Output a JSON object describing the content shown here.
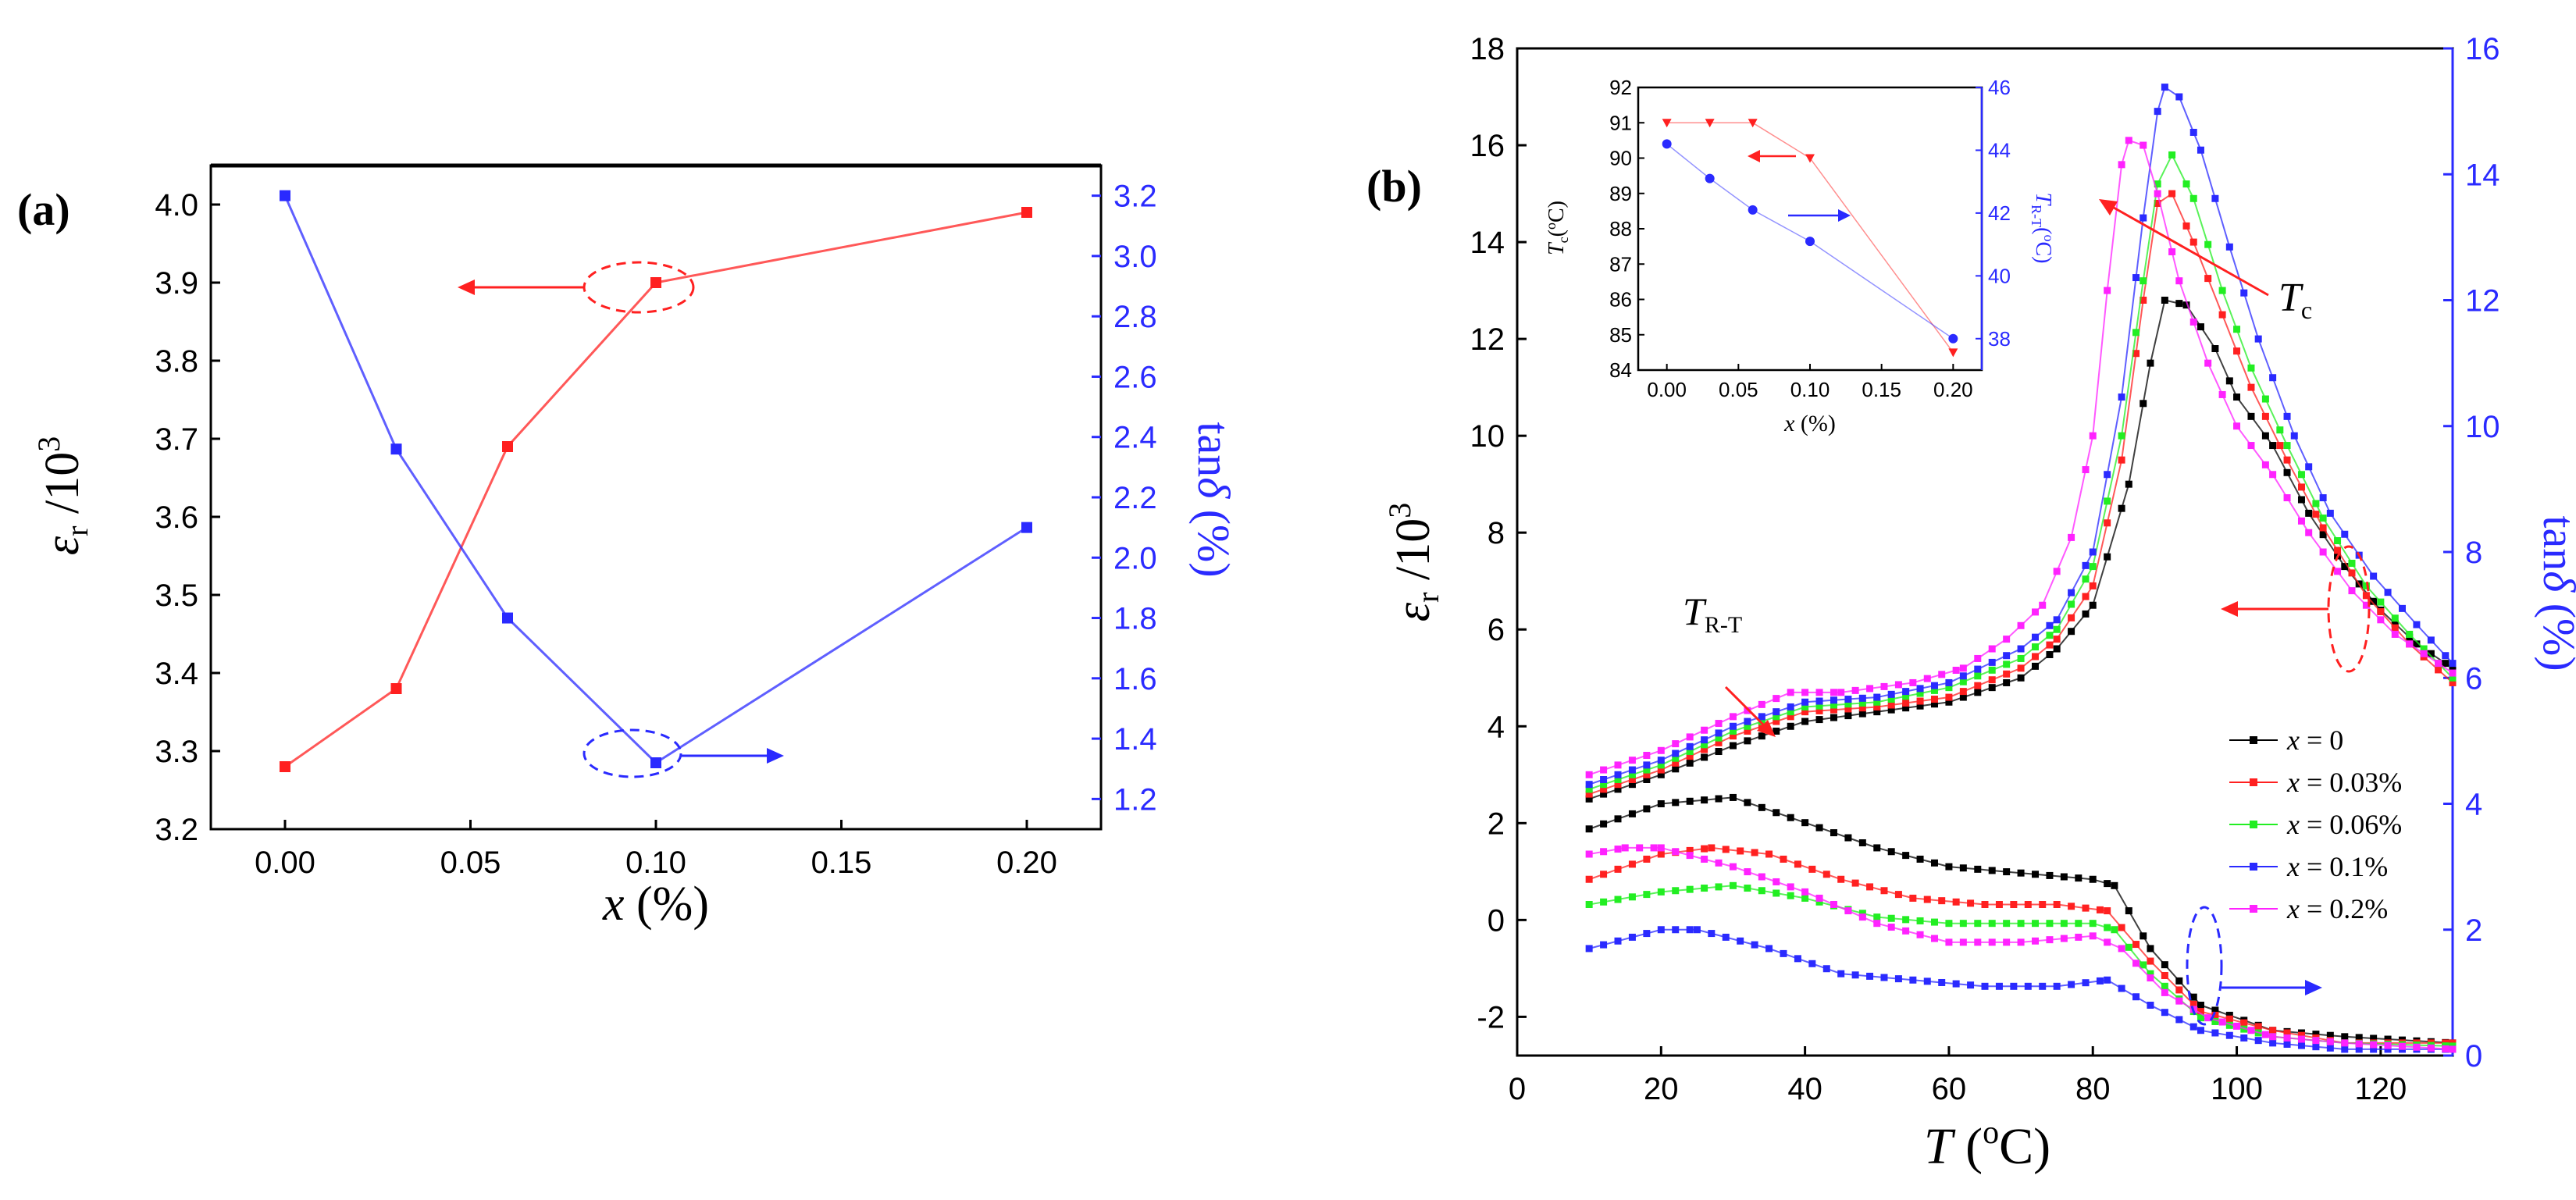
{
  "panels": {
    "a": {
      "label": "(a)",
      "y_left_label": {
        "sym": "ε",
        "sub": "r",
        "rest": " /10",
        "sup": "3"
      },
      "y_right_label": {
        "main": "tan",
        "sym": "δ",
        "rest": " (%)"
      },
      "x_label": {
        "sym": "x",
        "rest": " (%)"
      },
      "annotation_arrow_left": "left arrow indicating the red curve uses the left axis",
      "annotation_arrow_right": "right arrow indicating the blue curve uses the right axis"
    },
    "b": {
      "label": "(b)",
      "y_left_label": {
        "sym": "ε",
        "sub": "r",
        "rest": " /10",
        "sup": "3"
      },
      "y_right_label": {
        "main": "tan",
        "sym": "δ",
        "rest": " (%)"
      },
      "x_label": {
        "sym": "T",
        "rest": " (",
        "sup": "o",
        "tail": "C)"
      },
      "annotation_tc": {
        "sym": "T",
        "sub": "c"
      },
      "annotation_trt": {
        "sym": "T",
        "sub": "R-T"
      },
      "inset": {
        "y_left_label": {
          "sym": "T",
          "sub": "c",
          "rest": "(",
          "sup": "o",
          "tail": "C)"
        },
        "y_right_label": {
          "sym": "T",
          "sub": "R-T",
          "rest": "(",
          "sup": "o",
          "tail": "C)"
        },
        "x_label": {
          "sym": "x",
          "rest": " (%)"
        }
      }
    }
  },
  "colors": {
    "red": "#ff2020",
    "blue": "#2a2aff",
    "black": "#000000",
    "green": "#22ee22",
    "magenta": "#ff22ff",
    "axis": "#000000",
    "right_axis_b": "#2a2aff"
  },
  "chart_data": [
    {
      "type": "line",
      "panel": "a",
      "x": [
        0.0,
        0.03,
        0.06,
        0.1,
        0.2
      ],
      "xlim": [
        -0.02,
        0.22
      ],
      "xticks": [
        "0.00",
        "0.05",
        "0.10",
        "0.15",
        "0.20"
      ],
      "xtick_values": [
        0.0,
        0.05,
        0.1,
        0.15,
        0.2
      ],
      "ylim_left": [
        3.2,
        4.05
      ],
      "yticks_left": [
        "3.2",
        "3.3",
        "3.4",
        "3.5",
        "3.6",
        "3.7",
        "3.8",
        "3.9",
        "4.0"
      ],
      "ytick_values_left": [
        3.2,
        3.3,
        3.4,
        3.5,
        3.6,
        3.7,
        3.8,
        3.9,
        4.0
      ],
      "ylim_right": [
        1.1,
        3.3
      ],
      "yticks_right": [
        "1.2",
        "1.4",
        "1.6",
        "1.8",
        "2.0",
        "2.2",
        "2.4",
        "2.6",
        "2.8",
        "3.0",
        "3.2"
      ],
      "ytick_values_right": [
        1.2,
        1.4,
        1.6,
        1.8,
        2.0,
        2.2,
        2.4,
        2.6,
        2.8,
        3.0,
        3.2
      ],
      "series": [
        {
          "axis": "left",
          "color": "red",
          "values": [
            3.28,
            3.38,
            3.69,
            3.9,
            3.99
          ]
        },
        {
          "axis": "right",
          "color": "blue",
          "values": [
            3.2,
            2.36,
            1.8,
            1.32,
            2.1
          ]
        }
      ]
    },
    {
      "type": "line",
      "panel": "b",
      "xlim": [
        0,
        130
      ],
      "xticks": [
        "0",
        "20",
        "40",
        "60",
        "80",
        "100",
        "120"
      ],
      "xtick_values": [
        0,
        20,
        40,
        60,
        80,
        100,
        120
      ],
      "ylim_left": [
        -2.8,
        18
      ],
      "yticks_left": [
        "-2",
        "0",
        "2",
        "4",
        "6",
        "8",
        "10",
        "12",
        "14",
        "16",
        "18"
      ],
      "ytick_values_left": [
        -2,
        0,
        2,
        4,
        6,
        8,
        10,
        12,
        14,
        16,
        18
      ],
      "ylim_right": [
        0,
        16
      ],
      "yticks_right": [
        "0",
        "2",
        "4",
        "6",
        "8",
        "10",
        "12",
        "14",
        "16"
      ],
      "ytick_values_right": [
        0,
        2,
        4,
        6,
        8,
        10,
        12,
        14,
        16
      ],
      "legend": {
        "placement": "lower-right (inside plot)",
        "entries": [
          "x = 0",
          "x = 0.03%",
          "x = 0.06%",
          "x = 0.1%",
          "x = 0.2%"
        ]
      },
      "permittivity_series": [
        {
          "name": "x = 0",
          "color": "black",
          "points": [
            [
              10,
              2.5
            ],
            [
              20,
              3.0
            ],
            [
              30,
              3.6
            ],
            [
              40,
              4.1
            ],
            [
              50,
              4.3
            ],
            [
              60,
              4.5
            ],
            [
              70,
              5.0
            ],
            [
              75,
              5.6
            ],
            [
              80,
              6.5
            ],
            [
              85,
              9.0
            ],
            [
              88,
              11.5
            ],
            [
              90,
              12.8
            ],
            [
              93,
              12.7
            ],
            [
              97,
              11.8
            ],
            [
              100,
              10.8
            ],
            [
              105,
              9.8
            ],
            [
              110,
              8.4
            ],
            [
              115,
              7.3
            ],
            [
              120,
              6.4
            ],
            [
              125,
              5.7
            ],
            [
              130,
              5.2
            ]
          ]
        },
        {
          "name": "x = 0.03%",
          "color": "red",
          "points": [
            [
              10,
              2.6
            ],
            [
              20,
              3.1
            ],
            [
              30,
              3.8
            ],
            [
              40,
              4.3
            ],
            [
              50,
              4.4
            ],
            [
              60,
              4.6
            ],
            [
              70,
              5.2
            ],
            [
              75,
              5.8
            ],
            [
              80,
              6.9
            ],
            [
              84,
              9.5
            ],
            [
              87,
              12.8
            ],
            [
              89,
              14.8
            ],
            [
              91,
              15.0
            ],
            [
              94,
              14.0
            ],
            [
              98,
              12.5
            ],
            [
              102,
              11.0
            ],
            [
              107,
              9.5
            ],
            [
              112,
              8.1
            ],
            [
              118,
              6.7
            ],
            [
              124,
              5.7
            ],
            [
              130,
              4.9
            ]
          ]
        },
        {
          "name": "x = 0.06%",
          "color": "green",
          "points": [
            [
              10,
              2.7
            ],
            [
              20,
              3.2
            ],
            [
              30,
              3.9
            ],
            [
              40,
              4.4
            ],
            [
              50,
              4.5
            ],
            [
              60,
              4.8
            ],
            [
              70,
              5.4
            ],
            [
              75,
              6.0
            ],
            [
              80,
              7.3
            ],
            [
              84,
              10.0
            ],
            [
              87,
              13.2
            ],
            [
              89,
              15.2
            ],
            [
              91,
              15.8
            ],
            [
              94,
              14.9
            ],
            [
              98,
              13.0
            ],
            [
              102,
              11.4
            ],
            [
              107,
              9.8
            ],
            [
              112,
              8.3
            ],
            [
              118,
              6.9
            ],
            [
              124,
              5.9
            ],
            [
              130,
              5.0
            ]
          ]
        },
        {
          "name": "x = 0.1%",
          "color": "blue",
          "points": [
            [
              10,
              2.8
            ],
            [
              20,
              3.3
            ],
            [
              30,
              4.0
            ],
            [
              40,
              4.5
            ],
            [
              50,
              4.6
            ],
            [
              60,
              4.9
            ],
            [
              70,
              5.6
            ],
            [
              75,
              6.2
            ],
            [
              80,
              7.6
            ],
            [
              84,
              10.8
            ],
            [
              87,
              14.5
            ],
            [
              89,
              16.7
            ],
            [
              90,
              17.2
            ],
            [
              92,
              17.0
            ],
            [
              95,
              15.9
            ],
            [
              99,
              13.9
            ],
            [
              103,
              12.0
            ],
            [
              108,
              10.0
            ],
            [
              113,
              8.4
            ],
            [
              119,
              7.1
            ],
            [
              125,
              6.1
            ],
            [
              130,
              5.3
            ]
          ]
        },
        {
          "name": "x = 0.2%",
          "color": "magenta",
          "points": [
            [
              10,
              3.0
            ],
            [
              20,
              3.5
            ],
            [
              30,
              4.2
            ],
            [
              38,
              4.7
            ],
            [
              45,
              4.7
            ],
            [
              55,
              4.9
            ],
            [
              62,
              5.2
            ],
            [
              68,
              5.8
            ],
            [
              73,
              6.5
            ],
            [
              77,
              7.9
            ],
            [
              80,
              10.0
            ],
            [
              82,
              13.0
            ],
            [
              84,
              15.6
            ],
            [
              85,
              16.1
            ],
            [
              87,
              16.0
            ],
            [
              89,
              15.0
            ],
            [
              92,
              13.2
            ],
            [
              96,
              11.5
            ],
            [
              100,
              10.2
            ],
            [
              105,
              9.2
            ],
            [
              110,
              8.0
            ],
            [
              116,
              6.8
            ],
            [
              122,
              5.9
            ],
            [
              130,
              5.1
            ]
          ]
        }
      ],
      "loss_series": [
        {
          "name": "x = 0",
          "color": "black",
          "points": [
            [
              10,
              3.6
            ],
            [
              20,
              4.0
            ],
            [
              30,
              4.1
            ],
            [
              40,
              3.7
            ],
            [
              50,
              3.3
            ],
            [
              60,
              3.0
            ],
            [
              70,
              2.9
            ],
            [
              80,
              2.8
            ],
            [
              83,
              2.7
            ],
            [
              88,
              1.7
            ],
            [
              95,
              0.8
            ],
            [
              105,
              0.4
            ],
            [
              115,
              0.3
            ],
            [
              130,
              0.2
            ]
          ]
        },
        {
          "name": "x = 0.03%",
          "color": "red",
          "points": [
            [
              10,
              2.8
            ],
            [
              20,
              3.2
            ],
            [
              27,
              3.3
            ],
            [
              35,
              3.2
            ],
            [
              45,
              2.8
            ],
            [
              55,
              2.5
            ],
            [
              65,
              2.4
            ],
            [
              75,
              2.4
            ],
            [
              82,
              2.3
            ],
            [
              88,
              1.5
            ],
            [
              95,
              0.7
            ],
            [
              105,
              0.4
            ],
            [
              115,
              0.2
            ],
            [
              130,
              0.2
            ]
          ]
        },
        {
          "name": "x = 0.06%",
          "color": "green",
          "points": [
            [
              10,
              2.4
            ],
            [
              20,
              2.6
            ],
            [
              30,
              2.7
            ],
            [
              40,
              2.5
            ],
            [
              50,
              2.2
            ],
            [
              60,
              2.1
            ],
            [
              70,
              2.1
            ],
            [
              80,
              2.1
            ],
            [
              83,
              2.0
            ],
            [
              88,
              1.3
            ],
            [
              95,
              0.6
            ],
            [
              105,
              0.3
            ],
            [
              115,
              0.2
            ],
            [
              130,
              0.15
            ]
          ]
        },
        {
          "name": "x = 0.1%",
          "color": "blue",
          "points": [
            [
              10,
              1.7
            ],
            [
              20,
              2.0
            ],
            [
              25,
              2.0
            ],
            [
              35,
              1.7
            ],
            [
              45,
              1.3
            ],
            [
              55,
              1.2
            ],
            [
              65,
              1.1
            ],
            [
              75,
              1.1
            ],
            [
              82,
              1.2
            ],
            [
              88,
              0.8
            ],
            [
              95,
              0.4
            ],
            [
              105,
              0.2
            ],
            [
              115,
              0.1
            ],
            [
              130,
              0.1
            ]
          ]
        },
        {
          "name": "x = 0.2%",
          "color": "magenta",
          "points": [
            [
              10,
              3.2
            ],
            [
              15,
              3.3
            ],
            [
              20,
              3.3
            ],
            [
              30,
              3.0
            ],
            [
              40,
              2.6
            ],
            [
              50,
              2.1
            ],
            [
              60,
              1.8
            ],
            [
              70,
              1.8
            ],
            [
              80,
              1.9
            ],
            [
              84,
              1.7
            ],
            [
              90,
              1.0
            ],
            [
              96,
              0.6
            ],
            [
              105,
              0.3
            ],
            [
              115,
              0.2
            ],
            [
              130,
              0.1
            ]
          ]
        }
      ]
    },
    {
      "type": "line",
      "panel": "b-inset",
      "xlim": [
        -0.02,
        0.22
      ],
      "xticks": [
        "0.00",
        "0.05",
        "0.10",
        "0.15",
        "0.20"
      ],
      "xtick_values": [
        0.0,
        0.05,
        0.1,
        0.15,
        0.2
      ],
      "ylim_left": [
        84,
        92
      ],
      "yticks_left": [
        "84",
        "85",
        "86",
        "87",
        "88",
        "89",
        "90",
        "91",
        "92"
      ],
      "ytick_values_left": [
        84,
        85,
        86,
        87,
        88,
        89,
        90,
        91,
        92
      ],
      "ylim_right": [
        37,
        46
      ],
      "yticks_right": [
        "38",
        "40",
        "42",
        "44",
        "46"
      ],
      "ytick_values_right": [
        38,
        40,
        42,
        44,
        46
      ],
      "series": [
        {
          "axis": "left",
          "color": "red",
          "x": [
            0.0,
            0.03,
            0.06,
            0.1,
            0.2
          ],
          "values": [
            91,
            91,
            91,
            90,
            84.5
          ]
        },
        {
          "axis": "right",
          "color": "blue",
          "x": [
            0.0,
            0.03,
            0.06,
            0.1,
            0.2
          ],
          "values": [
            44.2,
            43.1,
            42.1,
            41.1,
            38.0
          ]
        }
      ]
    }
  ]
}
